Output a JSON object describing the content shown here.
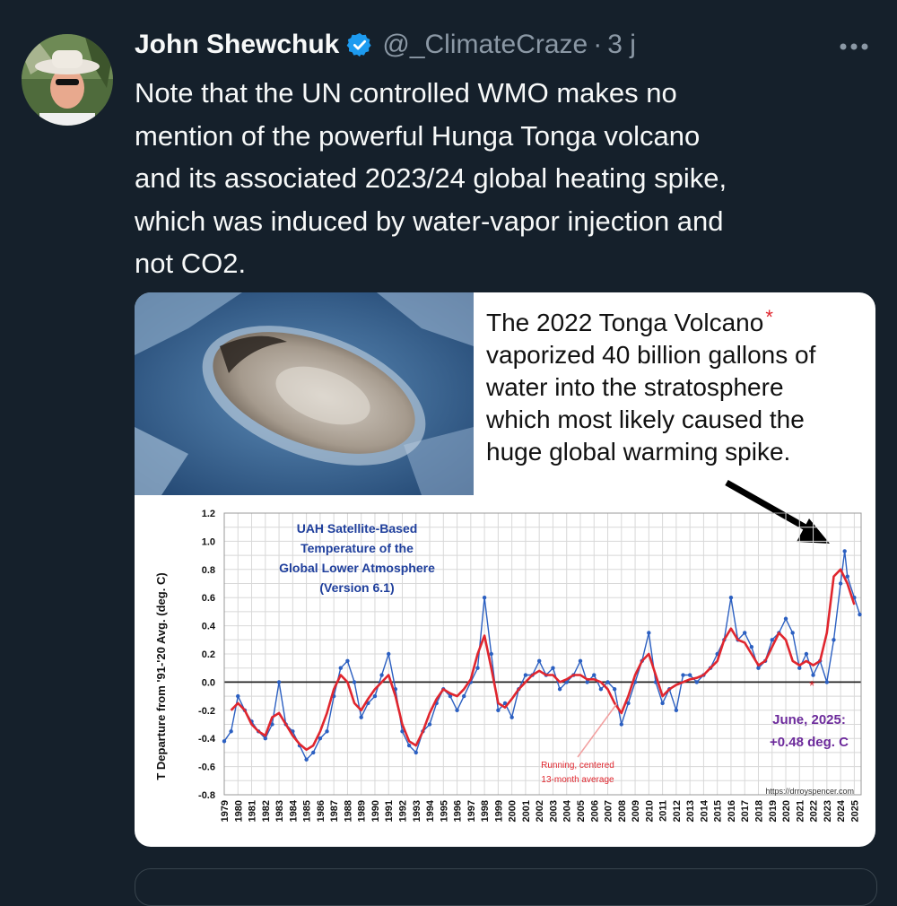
{
  "tweet": {
    "author_name": "John Shewchuk",
    "handle": "@_ClimateCraze",
    "separator": "·",
    "time": "3 j",
    "text": "Note that the UN controlled WMO makes no\nmention of the powerful Hunga Tonga volcano\nand its associated 2023/24 global heating spike,\nwhich was induced by water-vapor injection and\nnot CO2.",
    "avatar_icon": "user-avatar-photo",
    "verified_icon": "verified-badge-icon",
    "more_icon": "more-horizontal-icon",
    "colors": {
      "background": "#15202b",
      "text": "#f7f9f9",
      "secondary": "#8b98a5",
      "verified": "#1d9bf0"
    }
  },
  "image": {
    "photo_description_icon": "satellite-photo-volcano-plume",
    "callout": {
      "line1": "The 2022 Tonga Volcano",
      "asterisk": "*",
      "line2": "vaporized 40 billion gallons of",
      "line3": "water into the stratosphere",
      "line4": "which most likely caused the",
      "line5": "huge global warming spike."
    }
  },
  "chart_data": {
    "type": "line",
    "title": [
      "UAH Satellite-Based",
      "Temperature of the",
      "Global Lower Atmosphere",
      "(Version 6.1)"
    ],
    "ylabel": "T Departure from '91-'20 Avg. (deg. C)",
    "xlabel": "",
    "ylim": [
      -0.8,
      1.2
    ],
    "xlim": [
      1979,
      2025.5
    ],
    "y_ticks": [
      "1.2",
      "1.0",
      "0.8",
      "0.6",
      "0.4",
      "0.2",
      "0.0",
      "-0.2",
      "-0.4",
      "-0.6",
      "-0.8"
    ],
    "x_ticks": [
      "1979",
      "1980",
      "1981",
      "1982",
      "1983",
      "1984",
      "1985",
      "1986",
      "1987",
      "1988",
      "1989",
      "1990",
      "1991",
      "1992",
      "1993",
      "1994",
      "1995",
      "1996",
      "1997",
      "1998",
      "1999",
      "2000",
      "2001",
      "2002",
      "2003",
      "2004",
      "2005",
      "2006",
      "2007",
      "2008",
      "2009",
      "2010",
      "2011",
      "2012",
      "2013",
      "2014",
      "2015",
      "2016",
      "2017",
      "2018",
      "2019",
      "2020",
      "2021",
      "2022",
      "2023",
      "2024",
      "2025"
    ],
    "grid": true,
    "series": [
      {
        "name": "",
        "color": "#2b5fc1",
        "x": [
          1979.0,
          1979.5,
          1980.0,
          1980.5,
          1981.0,
          1981.5,
          1982.0,
          1982.5,
          1983.0,
          1983.5,
          1984.0,
          1984.5,
          1985.0,
          1985.5,
          1986.0,
          1986.5,
          1987.0,
          1987.5,
          1988.0,
          1988.5,
          1989.0,
          1989.5,
          1990.0,
          1990.5,
          1991.0,
          1991.5,
          1992.0,
          1992.5,
          1993.0,
          1993.5,
          1994.0,
          1994.5,
          1995.0,
          1995.5,
          1996.0,
          1996.5,
          1997.0,
          1997.5,
          1998.0,
          1998.5,
          1999.0,
          1999.5,
          2000.0,
          2000.5,
          2001.0,
          2001.5,
          2002.0,
          2002.5,
          2003.0,
          2003.5,
          2004.0,
          2004.5,
          2005.0,
          2005.5,
          2006.0,
          2006.5,
          2007.0,
          2007.5,
          2008.0,
          2008.5,
          2009.0,
          2009.5,
          2010.0,
          2010.5,
          2011.0,
          2011.5,
          2012.0,
          2012.5,
          2013.0,
          2013.5,
          2014.0,
          2014.5,
          2015.0,
          2015.5,
          2016.0,
          2016.5,
          2017.0,
          2017.5,
          2018.0,
          2018.5,
          2019.0,
          2019.5,
          2020.0,
          2020.5,
          2021.0,
          2021.5,
          2022.0,
          2022.5,
          2023.0,
          2023.5,
          2024.0,
          2024.3,
          2024.5,
          2025.0,
          2025.4
        ],
        "values": [
          -0.42,
          -0.35,
          -0.1,
          -0.2,
          -0.28,
          -0.35,
          -0.4,
          -0.3,
          0.0,
          -0.3,
          -0.35,
          -0.45,
          -0.55,
          -0.5,
          -0.4,
          -0.35,
          -0.1,
          0.1,
          0.15,
          0.0,
          -0.25,
          -0.15,
          -0.1,
          0.05,
          0.2,
          -0.05,
          -0.35,
          -0.45,
          -0.5,
          -0.35,
          -0.3,
          -0.15,
          -0.05,
          -0.1,
          -0.2,
          -0.1,
          0.0,
          0.1,
          0.6,
          0.2,
          -0.2,
          -0.15,
          -0.25,
          -0.05,
          0.05,
          0.05,
          0.15,
          0.05,
          0.1,
          -0.05,
          0.0,
          0.05,
          0.15,
          0.0,
          0.05,
          -0.05,
          0.0,
          -0.05,
          -0.3,
          -0.15,
          0.0,
          0.15,
          0.35,
          0.0,
          -0.15,
          -0.05,
          -0.2,
          0.05,
          0.05,
          0.0,
          0.05,
          0.1,
          0.2,
          0.3,
          0.6,
          0.3,
          0.35,
          0.25,
          0.1,
          0.15,
          0.3,
          0.35,
          0.45,
          0.35,
          0.1,
          0.2,
          0.05,
          0.15,
          0.0,
          0.3,
          0.7,
          0.93,
          0.75,
          0.6,
          0.48
        ]
      },
      {
        "name": "Running, centered 13-month average",
        "color": "#e0262e",
        "x": [
          1979.5,
          1980.0,
          1980.5,
          1981.0,
          1981.5,
          1982.0,
          1982.5,
          1983.0,
          1983.5,
          1984.0,
          1984.5,
          1985.0,
          1985.5,
          1986.0,
          1986.5,
          1987.0,
          1987.5,
          1988.0,
          1988.5,
          1989.0,
          1989.5,
          1990.0,
          1990.5,
          1991.0,
          1991.5,
          1992.0,
          1992.5,
          1993.0,
          1993.5,
          1994.0,
          1994.5,
          1995.0,
          1995.5,
          1996.0,
          1996.5,
          1997.0,
          1997.5,
          1998.0,
          1998.5,
          1999.0,
          1999.5,
          2000.0,
          2000.5,
          2001.0,
          2001.5,
          2002.0,
          2002.5,
          2003.0,
          2003.5,
          2004.0,
          2004.5,
          2005.0,
          2005.5,
          2006.0,
          2006.5,
          2007.0,
          2007.5,
          2008.0,
          2008.5,
          2009.0,
          2009.5,
          2010.0,
          2010.5,
          2011.0,
          2011.5,
          2012.0,
          2012.5,
          2013.0,
          2013.5,
          2014.0,
          2014.5,
          2015.0,
          2015.5,
          2016.0,
          2016.5,
          2017.0,
          2017.5,
          2018.0,
          2018.5,
          2019.0,
          2019.5,
          2020.0,
          2020.5,
          2021.0,
          2021.5,
          2022.0,
          2022.5,
          2023.0,
          2023.5,
          2024.0,
          2024.5,
          2025.0
        ],
        "values": [
          -0.2,
          -0.15,
          -0.2,
          -0.3,
          -0.35,
          -0.38,
          -0.25,
          -0.22,
          -0.3,
          -0.38,
          -0.44,
          -0.48,
          -0.45,
          -0.35,
          -0.22,
          -0.05,
          0.05,
          0.0,
          -0.15,
          -0.2,
          -0.12,
          -0.05,
          0.0,
          0.05,
          -0.1,
          -0.3,
          -0.42,
          -0.45,
          -0.35,
          -0.22,
          -0.12,
          -0.05,
          -0.08,
          -0.1,
          -0.05,
          0.02,
          0.2,
          0.33,
          0.1,
          -0.15,
          -0.18,
          -0.12,
          -0.05,
          0.0,
          0.05,
          0.08,
          0.05,
          0.05,
          0.0,
          0.02,
          0.05,
          0.05,
          0.02,
          0.02,
          0.0,
          -0.05,
          -0.15,
          -0.22,
          -0.1,
          0.05,
          0.15,
          0.2,
          0.05,
          -0.1,
          -0.05,
          -0.02,
          0.0,
          0.02,
          0.03,
          0.05,
          0.1,
          0.15,
          0.3,
          0.38,
          0.3,
          0.28,
          0.2,
          0.12,
          0.15,
          0.25,
          0.35,
          0.3,
          0.15,
          0.12,
          0.15,
          0.12,
          0.15,
          0.35,
          0.75,
          0.8,
          0.7,
          0.55
        ]
      }
    ],
    "annotations": {
      "running_avg_line1": "Running, centered",
      "running_avg_line2": "13-month average",
      "latest_line1": "June, 2025:",
      "latest_line2": "+0.48 deg. C",
      "source": "https://drroyspencer.com",
      "eruption_marker": "*"
    }
  }
}
